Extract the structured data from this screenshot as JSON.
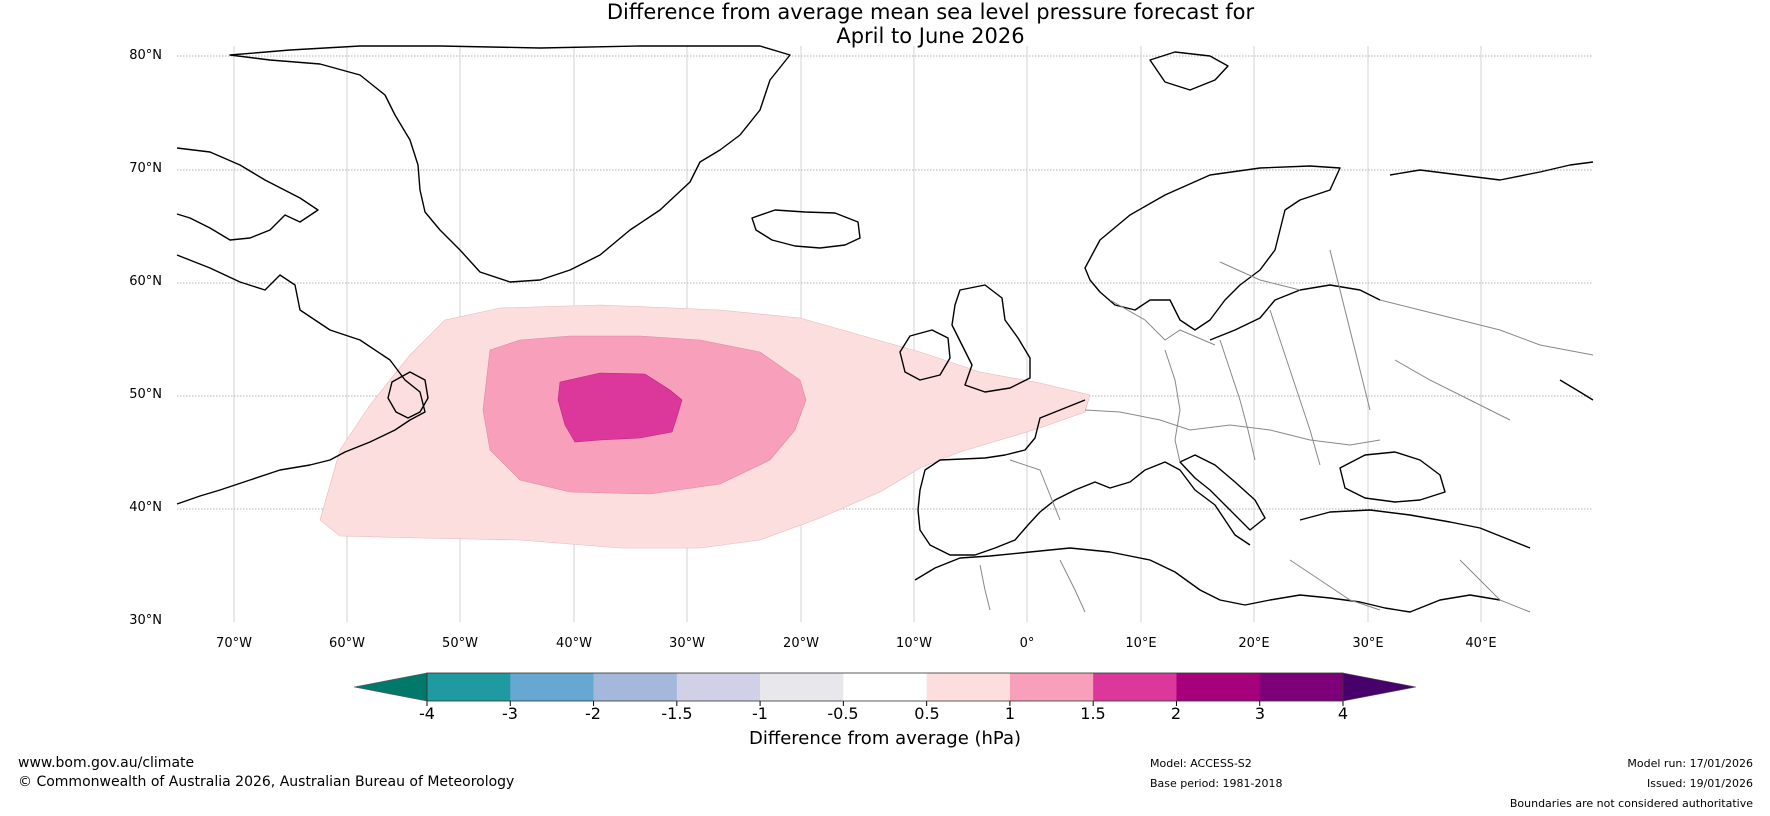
{
  "title": {
    "line1": "Difference from average mean sea level pressure forecast for",
    "line2": "April to June 2026"
  },
  "map": {
    "lat_labels": [
      "80°N",
      "70°N",
      "60°N",
      "50°N",
      "40°N",
      "30°N"
    ],
    "lon_labels": [
      "70°W",
      "60°W",
      "50°W",
      "40°W",
      "30°W",
      "20°W",
      "10°W",
      "0°",
      "10°E",
      "20°E",
      "30°E",
      "40°E"
    ],
    "extent": {
      "lon_min": -75,
      "lon_max": 50,
      "lat_min": 30,
      "lat_max": 81
    },
    "anomaly_regions": [
      {
        "name": "0.5 to 1 hPa",
        "color": "#fcdedf"
      },
      {
        "name": "1 to 1.5 hPa",
        "color": "#f8a0bb"
      },
      {
        "name": "1.5 to 2 hPa",
        "color": "#dc389b"
      }
    ]
  },
  "colorbar": {
    "title": "Difference from average (hPa)",
    "ticks": [
      "-4",
      "-3",
      "-2",
      "-1.5",
      "-1",
      "-0.5",
      "0.5",
      "1",
      "1.5",
      "2",
      "3",
      "4"
    ],
    "colors": [
      "#1e9aa0",
      "#66a8d2",
      "#a4b8dc",
      "#d0d0e6",
      "#e8e8ec",
      "#ffffff",
      "#fcdedf",
      "#f8a0bb",
      "#dc389b",
      "#a7007c",
      "#7d0079"
    ],
    "under_color": "#00786a",
    "over_color": "#48006a"
  },
  "footer": {
    "url": "www.bom.gov.au/climate",
    "copyright": "© Commonwealth of Australia 2026, Australian Bureau of Meteorology",
    "model": "Model: ACCESS-S2",
    "base_period": "Base period: 1981-2018",
    "model_run": "Model run: 17/01/2026",
    "issued": "Issued: 19/01/2026",
    "disclaimer": "Boundaries are not considered authoritative"
  }
}
